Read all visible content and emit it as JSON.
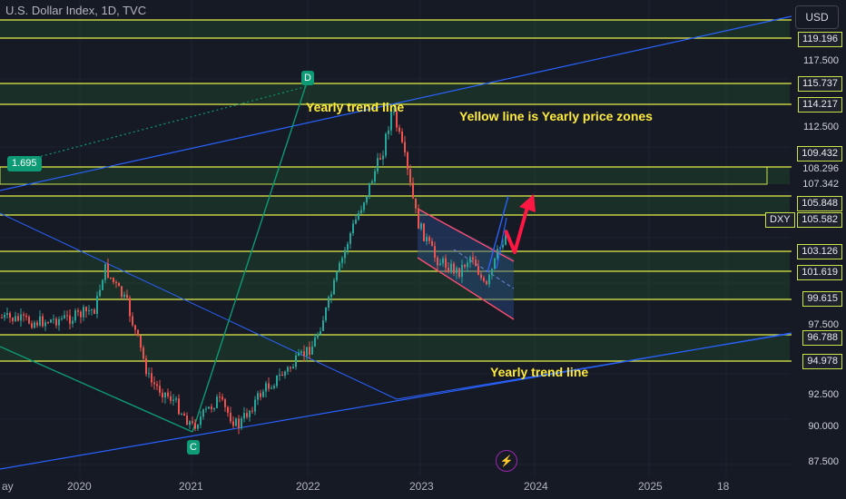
{
  "header": {
    "title": "U.S. Dollar Index, 1D, TVC",
    "currency_button": "USD"
  },
  "price_axis": {
    "labels": [
      "119.196",
      "117.500",
      "115.737",
      "114.217",
      "112.500",
      "109.432",
      "108.296",
      "107.342",
      "105.848",
      "103.126",
      "101.619",
      "99.615",
      "97.500",
      "96.788",
      "94.978",
      "92.500",
      "90.000",
      "87.500"
    ],
    "current": {
      "symbol": "DXY",
      "value": "105.582"
    }
  },
  "time_axis": {
    "labels": [
      "ay",
      "2020",
      "2021",
      "2022",
      "2023",
      "2024",
      "2025",
      "18"
    ]
  },
  "annotations": {
    "trend_top": "Yearly trend line",
    "zones_note": "Yellow line is Yearly price zones",
    "trend_bottom": "Yearly trend line",
    "point_d": "D",
    "point_c": "C",
    "ratio_badge": "1.695"
  },
  "colors": {
    "background": "#161a25",
    "zone_line": "#e6f14a",
    "trend_line": "#2962ff",
    "up": "#26a69a",
    "down": "#ef5350",
    "accent_arrow": "#ff1744"
  },
  "icons": {
    "flash": "lightning-icon"
  }
}
